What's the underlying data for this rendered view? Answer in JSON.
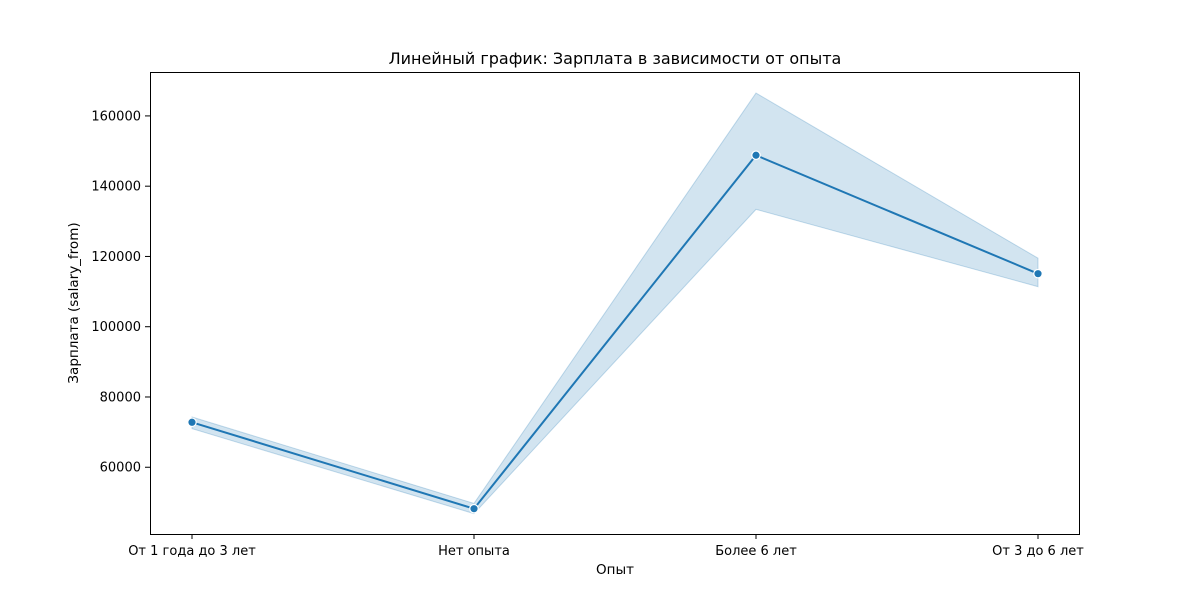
{
  "chart_data": {
    "type": "line",
    "title": "Линейный график: Зарплата в зависимости от опыта",
    "xlabel": "Опыт",
    "ylabel": "Зарплата (salary_from)",
    "categories": [
      "От 1 года до 3 лет",
      "Нет опыта",
      "Более 6 лет",
      "От 3 до 6 лет"
    ],
    "series": [
      {
        "values": [
          72800,
          48200,
          148800,
          115100
        ],
        "ci_lower": [
          71000,
          46800,
          133400,
          111400
        ],
        "ci_upper": [
          74300,
          49700,
          166500,
          119500
        ],
        "color": "#1f77b4",
        "marker": "circle"
      }
    ],
    "yticks": [
      60000,
      80000,
      100000,
      120000,
      140000,
      160000
    ],
    "ylim": [
      41000,
      172500
    ],
    "grid": false,
    "legend": "none"
  }
}
